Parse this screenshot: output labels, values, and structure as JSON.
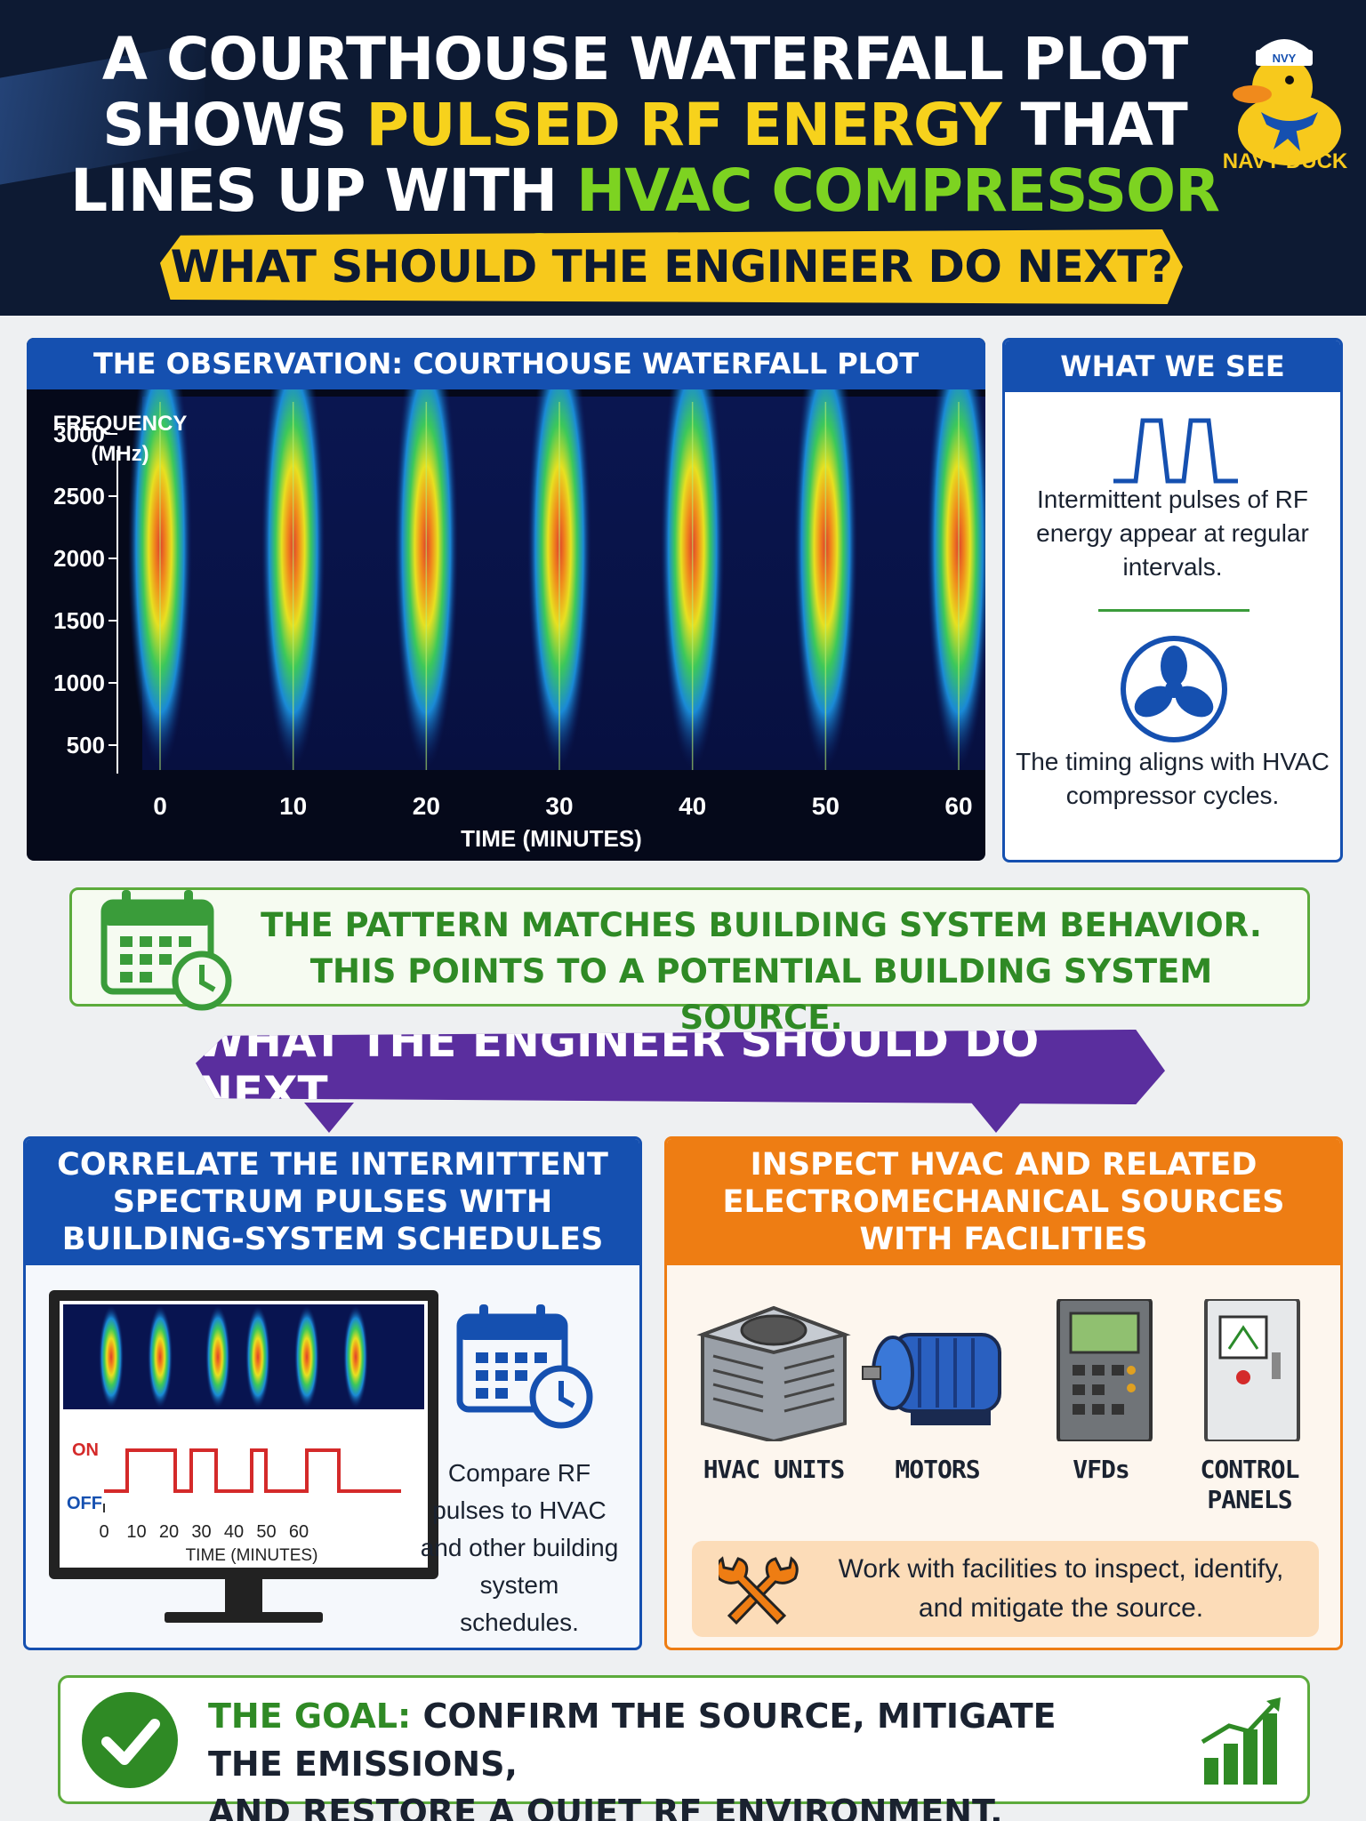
{
  "header": {
    "line1": "A COURTHOUSE WATERFALL PLOT",
    "line2_pre": "SHOWS ",
    "line2_highlight": "PULSED RF ENERGY",
    "line2_post": " THAT",
    "line3_pre": "LINES UP WITH ",
    "line3_highlight": "HVAC COMPRESSOR CYCLES.",
    "question": "WHAT SHOULD THE ENGINEER DO NEXT?",
    "logo_hat": "NVY",
    "logo_label": "NAVY DUCK"
  },
  "observation": {
    "title": "THE OBSERVATION: COURTHOUSE WATERFALL PLOT"
  },
  "chart_data": {
    "type": "heatmap",
    "ylabel_line1": "FREQUENCY",
    "ylabel_line2": "(MHz)",
    "xlabel": "TIME (MINUTES)",
    "y_ticks": [
      3000,
      2500,
      2000,
      1500,
      1000,
      500
    ],
    "x_ticks": [
      0,
      10,
      20,
      30,
      40,
      50,
      60
    ],
    "xlim": [
      0,
      60
    ],
    "ylim": [
      300,
      3300
    ],
    "pulse_times": [
      0,
      10,
      20,
      30,
      40,
      50,
      60
    ],
    "pulse_peak_frequency": 2100
  },
  "what_we_see": {
    "title": "WHAT WE SEE",
    "text1": "Intermittent pulses of RF energy appear at regular intervals.",
    "text2": "The timing aligns with HVAC compressor cycles."
  },
  "pattern": {
    "line1": "THE PATTERN MATCHES BUILDING SYSTEM BEHAVIOR.",
    "line2": "THIS POINTS TO A POTENTIAL BUILDING SYSTEM SOURCE."
  },
  "next": {
    "banner": "WHAT THE ENGINEER SHOULD DO NEXT"
  },
  "correlate": {
    "title": "CORRELATE THE INTERMITTENT SPECTRUM PULSES WITH BUILDING-SYSTEM SCHEDULES",
    "on_label": "ON",
    "off_label": "OFF",
    "ticks": [
      "0",
      "10",
      "20",
      "30",
      "40",
      "50",
      "60"
    ],
    "xlabel": "TIME (MINUTES)",
    "text": "Compare RF pulses to HVAC and other building system schedules."
  },
  "inspect": {
    "title": "INSPECT HVAC AND RELATED ELECTROMECHANICAL SOURCES WITH FACILITIES",
    "equipment": [
      {
        "icon": "hvac-unit-icon",
        "label": "HVAC UNITS"
      },
      {
        "icon": "motor-icon",
        "label": "MOTORS"
      },
      {
        "icon": "vfd-icon",
        "label": "VFDs"
      },
      {
        "icon": "control-panel-icon",
        "label": "CONTROL PANELS"
      }
    ],
    "work_text": "Work with facilities to inspect, identify, and mitigate the source."
  },
  "goal": {
    "label": "THE GOAL:",
    "text1": " CONFIRM THE SOURCE, MITIGATE THE EMISSIONS,",
    "text2": "AND RESTORE A QUIET RF ENVIRONMENT."
  },
  "colors": {
    "navy": "#0d1a33",
    "blue": "#1550b0",
    "yellow": "#f7c91c",
    "green": "#5cab3c",
    "purple": "#5a2e9e",
    "orange": "#ee7d13"
  }
}
